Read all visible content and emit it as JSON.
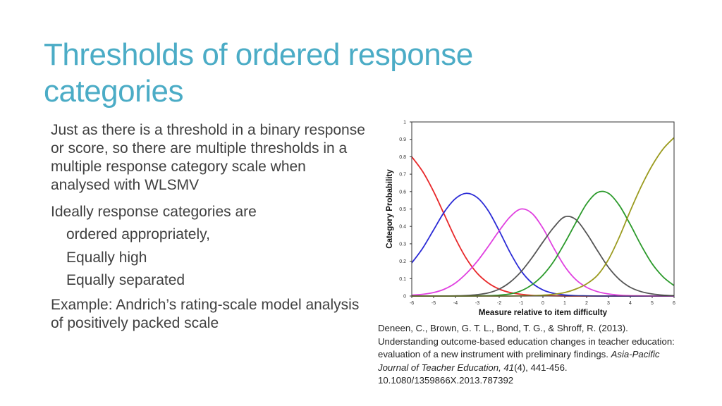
{
  "slide": {
    "title": "Thresholds of ordered response categories",
    "paragraph1": "Just as there is a threshold in a binary response or score, so there are multiple thresholds in a multiple response category scale when analysed with WLSMV",
    "paragraph2": "Ideally response categories are",
    "list": [
      "ordered appropriately,",
      "Equally high",
      "Equally separated"
    ],
    "paragraph3": "Example: Andrich’s rating-scale model analysis of positively packed scale",
    "citation": {
      "authors": "Deneen, C., Brown, G. T. L., Bond, T. G., & Shroff, R. (2013). Understanding outcome-based education changes in teacher education: evaluation of a new instrument with preliminary findings.",
      "journal": "Asia-Pacific Journal of Teacher Education, 41",
      "issue": "(4), 441-456. 10.1080/1359866X.2013.787392"
    }
  },
  "chart_data": {
    "type": "line",
    "title": "",
    "xlabel": "Measure relative to item difficulty",
    "ylabel": "Category Probability",
    "xlim": [
      -6,
      6
    ],
    "ylim": [
      0,
      1
    ],
    "xticks": [
      "-6",
      "-5",
      "-4",
      "-3",
      "-2",
      "-1",
      "0",
      "1",
      "2",
      "3",
      "4",
      "5",
      "6"
    ],
    "yticks": [
      "0",
      "0.1",
      "0.2",
      "0.3",
      "0.4",
      "0.5",
      "0.6",
      "0.7",
      "0.8",
      "0.9",
      "1"
    ],
    "grid": false,
    "legend": "none",
    "x": [
      -6,
      -5.5,
      -5,
      -4.5,
      -4,
      -3.5,
      -3,
      -2.5,
      -2,
      -1.5,
      -1,
      -0.5,
      0,
      0.5,
      1,
      1.5,
      2,
      2.5,
      3,
      3.5,
      4,
      4.5,
      5,
      5.5,
      6
    ],
    "series": [
      {
        "color": "#e8282a",
        "values": [
          0.8,
          0.715,
          0.6,
          0.465,
          0.33,
          0.215,
          0.13,
          0.075,
          0.04,
          0.02,
          0.01,
          0.004,
          0.002,
          0.001,
          0,
          0,
          0,
          0,
          0,
          0,
          0,
          0,
          0,
          0,
          0
        ]
      },
      {
        "color": "#2b2bd6",
        "values": [
          0.19,
          0.275,
          0.38,
          0.485,
          0.56,
          0.59,
          0.565,
          0.49,
          0.375,
          0.25,
          0.145,
          0.075,
          0.035,
          0.015,
          0.006,
          0.002,
          0.001,
          0,
          0,
          0,
          0,
          0,
          0,
          0,
          0
        ]
      },
      {
        "color": "#e040e0",
        "values": [
          0.005,
          0.01,
          0.02,
          0.04,
          0.075,
          0.13,
          0.2,
          0.285,
          0.375,
          0.455,
          0.5,
          0.475,
          0.39,
          0.275,
          0.17,
          0.095,
          0.05,
          0.025,
          0.012,
          0.005,
          0.002,
          0.001,
          0,
          0,
          0
        ]
      },
      {
        "color": "#555555",
        "values": [
          0,
          0,
          0,
          0,
          0.001,
          0.003,
          0.008,
          0.018,
          0.04,
          0.08,
          0.14,
          0.22,
          0.31,
          0.395,
          0.455,
          0.44,
          0.36,
          0.26,
          0.165,
          0.095,
          0.05,
          0.025,
          0.012,
          0.005,
          0.002
        ]
      },
      {
        "color": "#2b9a2b",
        "values": [
          0,
          0,
          0,
          0,
          0,
          0,
          0.001,
          0.002,
          0.005,
          0.012,
          0.03,
          0.065,
          0.12,
          0.2,
          0.305,
          0.42,
          0.53,
          0.595,
          0.59,
          0.52,
          0.41,
          0.29,
          0.185,
          0.11,
          0.06
        ]
      },
      {
        "color": "#9b9b1f",
        "values": [
          0,
          0,
          0,
          0,
          0,
          0,
          0,
          0,
          0,
          0,
          0.001,
          0.002,
          0.005,
          0.01,
          0.02,
          0.04,
          0.07,
          0.12,
          0.21,
          0.34,
          0.49,
          0.63,
          0.75,
          0.845,
          0.91
        ]
      }
    ]
  }
}
